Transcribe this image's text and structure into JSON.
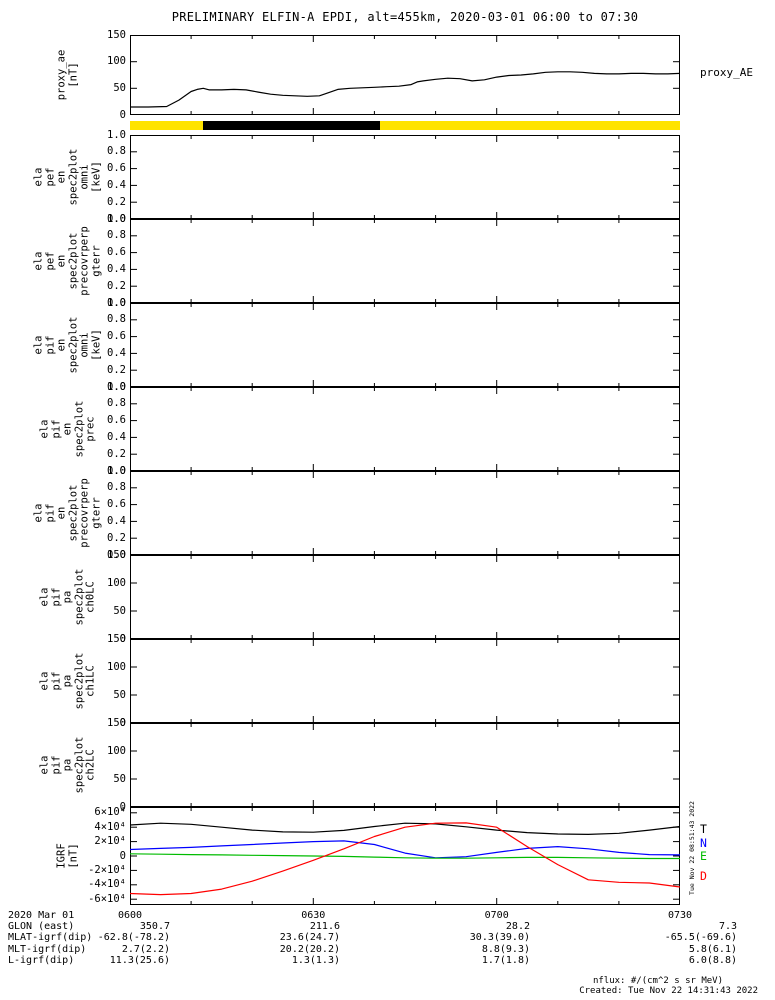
{
  "title": "PRELIMINARY ELFIN-A EPDI, alt=455km, 2020-03-01 06:00 to 07:30",
  "right_label": "proxy_AE",
  "side_timestamp": "Tue Nov 22 08:51:43 2022",
  "colors": {
    "background": "#ffffff",
    "axis": "#000000",
    "status_yellow": "#ffe300",
    "status_black": "#000000",
    "igrf_T": "#000000",
    "igrf_N": "#0000ff",
    "igrf_E": "#00bb00",
    "igrf_D": "#ff0000"
  },
  "x_axis": {
    "range_minutes": [
      0,
      90
    ],
    "tick_minutes": [
      0,
      30,
      60,
      90
    ],
    "tick_labels": [
      "0600",
      "0630",
      "0700",
      "0730"
    ]
  },
  "panels": [
    {
      "id": "proxy_ae",
      "label_lines": [
        "proxy_ae",
        "[nT]"
      ],
      "yticks": [
        "150",
        "100",
        "50",
        "0"
      ],
      "ytick_values": [
        150,
        100,
        50,
        0
      ],
      "ylim": [
        0,
        150
      ]
    },
    {
      "id": "pef_en_omni",
      "label_lines": [
        "ela",
        "pef",
        "en",
        "spec2plot",
        "omni",
        "[keV]"
      ],
      "yticks": [
        "1.0",
        "0.8",
        "0.6",
        "0.4",
        "0.2",
        "0.0"
      ],
      "ytick_values": [
        1,
        0.8,
        0.6,
        0.4,
        0.2,
        0
      ],
      "ylim": [
        0,
        1
      ]
    },
    {
      "id": "pef_en_precovrperp_gterr",
      "label_lines": [
        "ela",
        "pef",
        "en",
        "spec2plot",
        "precovrperp",
        "gterr"
      ],
      "yticks": [
        "1.0",
        "0.8",
        "0.6",
        "0.4",
        "0.2",
        "0.0"
      ],
      "ytick_values": [
        1,
        0.8,
        0.6,
        0.4,
        0.2,
        0
      ],
      "ylim": [
        0,
        1
      ]
    },
    {
      "id": "pif_en_omni",
      "label_lines": [
        "ela",
        "pif",
        "en",
        "spec2plot",
        "omni",
        "[keV]"
      ],
      "yticks": [
        "1.0",
        "0.8",
        "0.6",
        "0.4",
        "0.2",
        "0.0"
      ],
      "ytick_values": [
        1,
        0.8,
        0.6,
        0.4,
        0.2,
        0
      ],
      "ylim": [
        0,
        1
      ]
    },
    {
      "id": "pif_en_prec",
      "label_lines": [
        "ela",
        "pif",
        "en",
        "spec2plot",
        "prec"
      ],
      "yticks": [
        "1.0",
        "0.8",
        "0.6",
        "0.4",
        "0.2",
        "0.0"
      ],
      "ytick_values": [
        1,
        0.8,
        0.6,
        0.4,
        0.2,
        0
      ],
      "ylim": [
        0,
        1
      ]
    },
    {
      "id": "pif_en_precovrperp_gterr",
      "label_lines": [
        "ela",
        "pif",
        "en",
        "spec2plot",
        "precovrperp",
        "gterr"
      ],
      "yticks": [
        "1.0",
        "0.8",
        "0.6",
        "0.4",
        "0.2",
        "0.0"
      ],
      "ytick_values": [
        1,
        0.8,
        0.6,
        0.4,
        0.2,
        0
      ],
      "ylim": [
        0,
        1
      ]
    },
    {
      "id": "pif_pa_ch0LC",
      "label_lines": [
        "ela",
        "pif",
        "pa",
        "spec2plot",
        "ch0LC"
      ],
      "yticks": [
        "150",
        "100",
        "50",
        "0"
      ],
      "ytick_values": [
        150,
        100,
        50,
        0
      ],
      "ylim": [
        0,
        150
      ]
    },
    {
      "id": "pif_pa_ch1LC",
      "label_lines": [
        "ela",
        "pif",
        "pa",
        "spec2plot",
        "ch1LC"
      ],
      "yticks": [
        "150",
        "100",
        "50",
        "0"
      ],
      "ytick_values": [
        150,
        100,
        50,
        0
      ],
      "ylim": [
        0,
        150
      ]
    },
    {
      "id": "pif_pa_ch2LC",
      "label_lines": [
        "ela",
        "pif",
        "pa",
        "spec2plot",
        "ch2LC"
      ],
      "yticks": [
        "150",
        "100",
        "50",
        "0"
      ],
      "ytick_values": [
        150,
        100,
        50,
        0
      ],
      "ylim": [
        0,
        150
      ]
    },
    {
      "id": "igrf",
      "label_lines": [
        "IGRF",
        "[nT]"
      ],
      "yticks": [
        "6×10⁴",
        "4×10⁴",
        "2×10⁴",
        "0",
        "-2×10⁴",
        "-4×10⁴",
        "-6×10⁴"
      ],
      "ytick_values": [
        60000,
        40000,
        20000,
        0,
        -20000,
        -40000,
        -60000
      ],
      "ylim": [
        -68000,
        68000
      ]
    }
  ],
  "chart_data": [
    {
      "type": "line",
      "panel": "proxy_ae",
      "title": "proxy_AE",
      "ylabel": "proxy_ae [nT]",
      "ylim": [
        0,
        150
      ],
      "x_minutes": [
        0,
        3,
        6,
        8,
        10,
        11,
        12,
        13,
        15,
        17,
        19,
        21,
        23,
        25,
        27,
        29,
        31,
        32,
        34,
        36,
        38,
        40,
        42,
        44,
        46,
        47,
        48,
        50,
        52,
        54,
        56,
        58,
        60,
        62,
        64,
        66,
        68,
        70,
        72,
        74,
        76,
        78,
        80,
        82,
        84,
        86,
        88,
        90
      ],
      "values": [
        15,
        15,
        16,
        28,
        44,
        48,
        50,
        47,
        47,
        48,
        47,
        43,
        39,
        37,
        36,
        35,
        36,
        40,
        48,
        50,
        51,
        52,
        53,
        54,
        57,
        62,
        64,
        67,
        69,
        68,
        64,
        66,
        71,
        74,
        75,
        77,
        80,
        81,
        81,
        80,
        78,
        77,
        77,
        78,
        78,
        77,
        77,
        78
      ]
    },
    {
      "type": "bar",
      "panel": "status_bar",
      "description": "science-zone status bar below proxy_AE panel",
      "segments": [
        {
          "from_min": 0,
          "to_min": 90,
          "color": "#ffe300"
        },
        {
          "from_min": 12,
          "to_min": 41,
          "color": "#000000"
        }
      ]
    },
    {
      "type": "heatmap",
      "panel": "pef_en_omni",
      "empty": true,
      "ylim": [
        0,
        1
      ],
      "values": []
    },
    {
      "type": "heatmap",
      "panel": "pef_en_precovrperp_gterr",
      "empty": true,
      "ylim": [
        0,
        1
      ],
      "values": []
    },
    {
      "type": "heatmap",
      "panel": "pif_en_omni",
      "empty": true,
      "ylim": [
        0,
        1
      ],
      "values": []
    },
    {
      "type": "heatmap",
      "panel": "pif_en_prec",
      "empty": true,
      "ylim": [
        0,
        1
      ],
      "values": []
    },
    {
      "type": "heatmap",
      "panel": "pif_en_precovrperp_gterr",
      "empty": true,
      "ylim": [
        0,
        1
      ],
      "values": []
    },
    {
      "type": "line",
      "panel": "pif_pa_ch0LC",
      "empty": true,
      "ylim": [
        0,
        150
      ],
      "values": []
    },
    {
      "type": "line",
      "panel": "pif_pa_ch1LC",
      "empty": true,
      "ylim": [
        0,
        150
      ],
      "values": []
    },
    {
      "type": "line",
      "panel": "pif_pa_ch2LC",
      "empty": true,
      "ylim": [
        0,
        150
      ],
      "values": []
    },
    {
      "type": "line",
      "panel": "igrf",
      "ylabel": "IGRF [nT]",
      "ylim": [
        -68000,
        68000
      ],
      "legend_position": "right",
      "x_minutes": [
        0,
        5,
        10,
        15,
        20,
        25,
        30,
        35,
        40,
        45,
        50,
        55,
        60,
        65,
        70,
        75,
        80,
        85,
        90
      ],
      "series": [
        {
          "name": "T",
          "color": "#000000",
          "values": [
            43000,
            45500,
            44000,
            40000,
            36000,
            33500,
            33000,
            35500,
            41000,
            45500,
            44500,
            40500,
            36000,
            32500,
            30500,
            30000,
            31500,
            36000,
            41000
          ]
        },
        {
          "name": "N",
          "color": "#0000ff",
          "values": [
            9000,
            10500,
            12000,
            14000,
            16000,
            18000,
            20000,
            21000,
            16000,
            4000,
            -2500,
            -1000,
            5000,
            10500,
            13000,
            10000,
            5000,
            2000,
            1500
          ]
        },
        {
          "name": "E",
          "color": "#00bb00",
          "values": [
            3000,
            2500,
            2000,
            1500,
            1000,
            500,
            0,
            -500,
            -1500,
            -2500,
            -3000,
            -3000,
            -2500,
            -2000,
            -2000,
            -2500,
            -3000,
            -3500,
            -3500
          ]
        },
        {
          "name": "D",
          "color": "#ff0000",
          "values": [
            -52000,
            -53500,
            -52000,
            -46000,
            -35000,
            -21000,
            -6000,
            10000,
            27000,
            40000,
            45500,
            46000,
            40000,
            13000,
            -12000,
            -33000,
            -36500,
            -37500,
            -43000
          ]
        }
      ]
    }
  ],
  "footer": {
    "rows": [
      {
        "label": "2020 Mar 01",
        "values": [
          "0600",
          "0630",
          "0700",
          "0730"
        ]
      },
      {
        "label": "GLON (east)",
        "values": [
          "350.7",
          "211.6",
          "28.2",
          "7.3"
        ]
      },
      {
        "label": "MLAT-igrf(dip)",
        "values": [
          "-62.8(-78.2)",
          "23.6(24.7)",
          "30.3(39.0)",
          "-65.5(-69.6)"
        ]
      },
      {
        "label": "MLT-igrf(dip)",
        "values": [
          "2.7(2.2)",
          "20.2(20.2)",
          "8.8(9.3)",
          "5.8(6.1)"
        ]
      },
      {
        "label": "L-igrf(dip)",
        "values": [
          "11.3(25.6)",
          "1.3(1.3)",
          "1.7(1.8)",
          "6.0(8.8)"
        ]
      }
    ],
    "nflux": "nflux: #/(cm^2 s sr MeV)",
    "created": "Created: Tue Nov 22 14:31:43 2022"
  }
}
